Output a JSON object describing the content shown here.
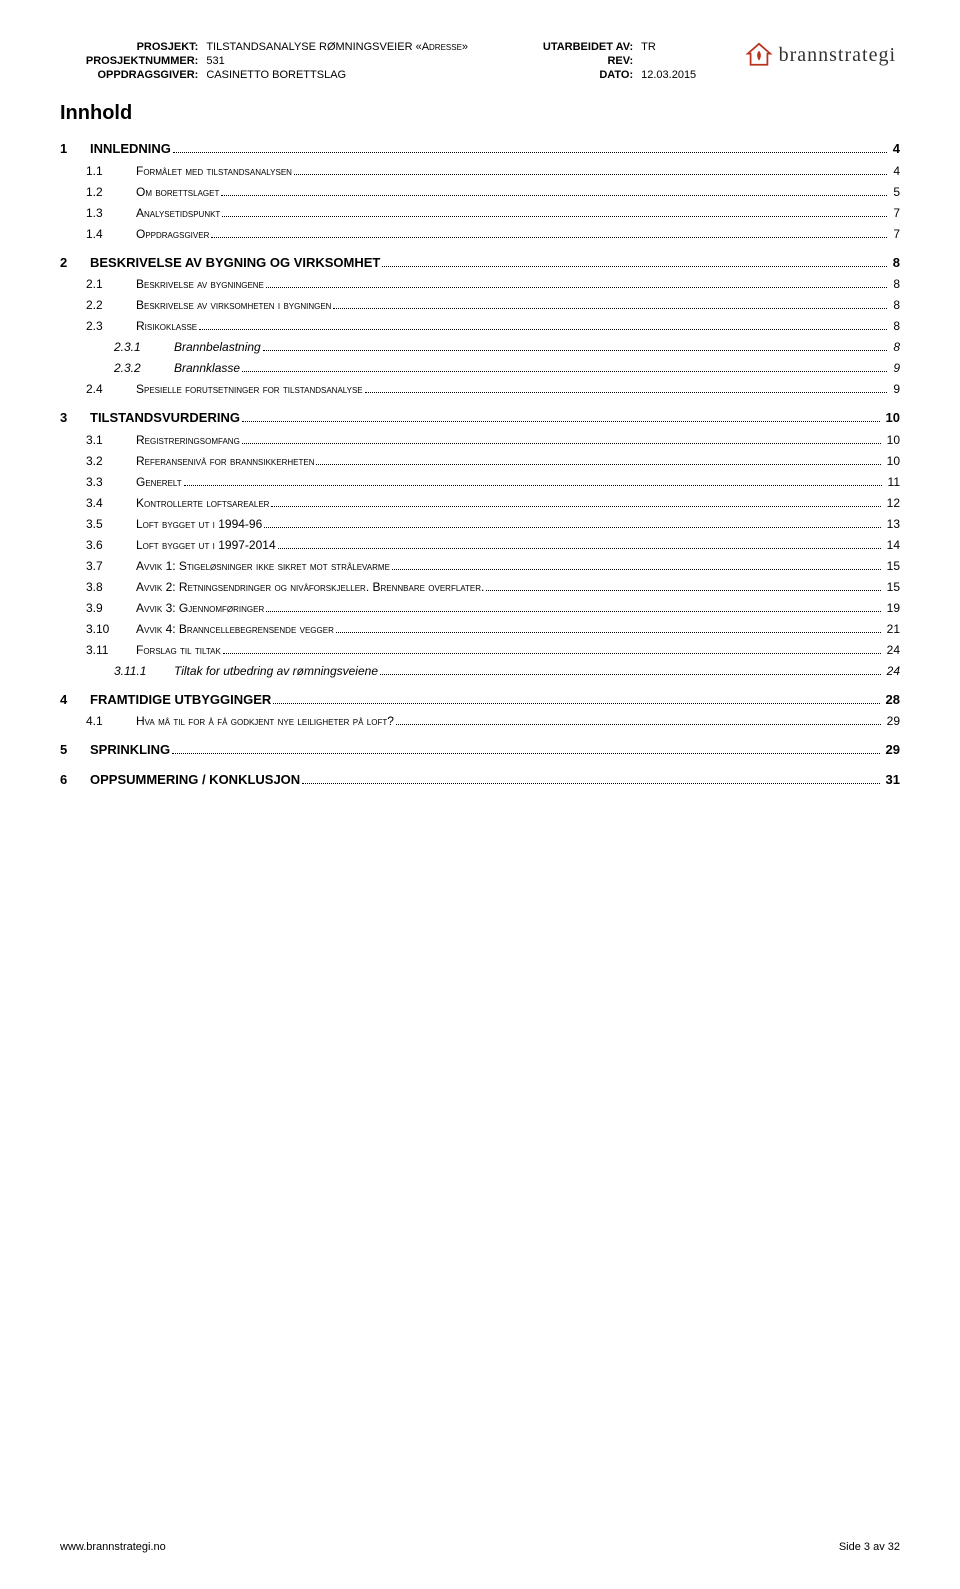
{
  "header": {
    "labels": {
      "prosjekt": "PROSJEKT:",
      "prosjektnummer": "PROSJEKTNUMMER:",
      "oppdragsgiver": "OPPDRAGSGIVER:",
      "utarbeidet": "UTARBEIDET AV:",
      "rev": "REV:",
      "dato": "DATO:"
    },
    "values": {
      "prosjekt": "TILSTANDSANALYSE RØMNINGSVEIER «Adresse»",
      "prosjektnummer": "531",
      "oppdragsgiver": "CASINETTO BORETTSLAG",
      "utarbeidet": "TR",
      "rev": "",
      "dato": "12.03.2015"
    },
    "logo_text": "brannstrategi",
    "logo_color": "#b8321e"
  },
  "title": "Innhold",
  "toc": [
    {
      "level": 1,
      "num": "1",
      "text": "INNLEDNING",
      "page": "4"
    },
    {
      "level": 2,
      "num": "1.1",
      "text": "Formålet med tilstandsanalysen",
      "page": "4"
    },
    {
      "level": 2,
      "num": "1.2",
      "text": "Om borettslaget",
      "page": "5"
    },
    {
      "level": 2,
      "num": "1.3",
      "text": "Analysetidspunkt",
      "page": "7"
    },
    {
      "level": 2,
      "num": "1.4",
      "text": "Oppdragsgiver",
      "page": "7"
    },
    {
      "level": 1,
      "num": "2",
      "text": "BESKRIVELSE AV BYGNING OG VIRKSOMHET",
      "page": "8"
    },
    {
      "level": 2,
      "num": "2.1",
      "text": "Beskrivelse av bygningene",
      "page": "8"
    },
    {
      "level": 2,
      "num": "2.2",
      "text": "Beskrivelse av virksomheten i bygningen",
      "page": "8"
    },
    {
      "level": 2,
      "num": "2.3",
      "text": "Risikoklasse",
      "page": "8"
    },
    {
      "level": 3,
      "num": "2.3.1",
      "text": "Brannbelastning",
      "page": "8"
    },
    {
      "level": 3,
      "num": "2.3.2",
      "text": "Brannklasse",
      "page": "9"
    },
    {
      "level": 2,
      "num": "2.4",
      "text": "Spesielle forutsetninger for tilstandsanalyse",
      "page": "9"
    },
    {
      "level": 1,
      "num": "3",
      "text": "TILSTANDSVURDERING",
      "page": "10"
    },
    {
      "level": 2,
      "num": "3.1",
      "text": "Registreringsomfang",
      "page": "10"
    },
    {
      "level": 2,
      "num": "3.2",
      "text": "Referansenivå for brannsikkerheten",
      "page": "10"
    },
    {
      "level": 2,
      "num": "3.3",
      "text": "Generelt",
      "page": "11"
    },
    {
      "level": 2,
      "num": "3.4",
      "text": "Kontrollerte loftsarealer",
      "page": "12"
    },
    {
      "level": 2,
      "num": "3.5",
      "text": "Loft bygget ut i 1994-96",
      "page": "13"
    },
    {
      "level": 2,
      "num": "3.6",
      "text": "Loft bygget ut i 1997-2014",
      "page": "14"
    },
    {
      "level": 2,
      "num": "3.7",
      "text": "Avvik 1: Stigeløsninger ikke sikret mot strålevarme",
      "page": "15"
    },
    {
      "level": 2,
      "num": "3.8",
      "text": "Avvik 2: Retningsendringer og nivåforskjeller. Brennbare overflater.",
      "page": "15"
    },
    {
      "level": 2,
      "num": "3.9",
      "text": "Avvik 3: Gjennomføringer",
      "page": "19"
    },
    {
      "level": 2,
      "num": "3.10",
      "text": "Avvik 4: Branncellebegrensende vegger",
      "page": "21"
    },
    {
      "level": 2,
      "num": "3.11",
      "text": "Forslag til tiltak",
      "page": "24"
    },
    {
      "level": 3,
      "num": "3.11.1",
      "text": "Tiltak for utbedring av rømningsveiene",
      "page": "24"
    },
    {
      "level": 1,
      "num": "4",
      "text": "FRAMTIDIGE UTBYGGINGER",
      "page": "28"
    },
    {
      "level": 2,
      "num": "4.1",
      "text": "Hva må til for å få godkjent nye leiligheter på loft?",
      "page": "29"
    },
    {
      "level": 1,
      "num": "5",
      "text": "SPRINKLING",
      "page": "29"
    },
    {
      "level": 1,
      "num": "6",
      "text": "OPPSUMMERING / KONKLUSJON",
      "page": "31"
    }
  ],
  "footer": {
    "left": "www.brannstrategi.no",
    "right": "Side 3 av 32"
  }
}
